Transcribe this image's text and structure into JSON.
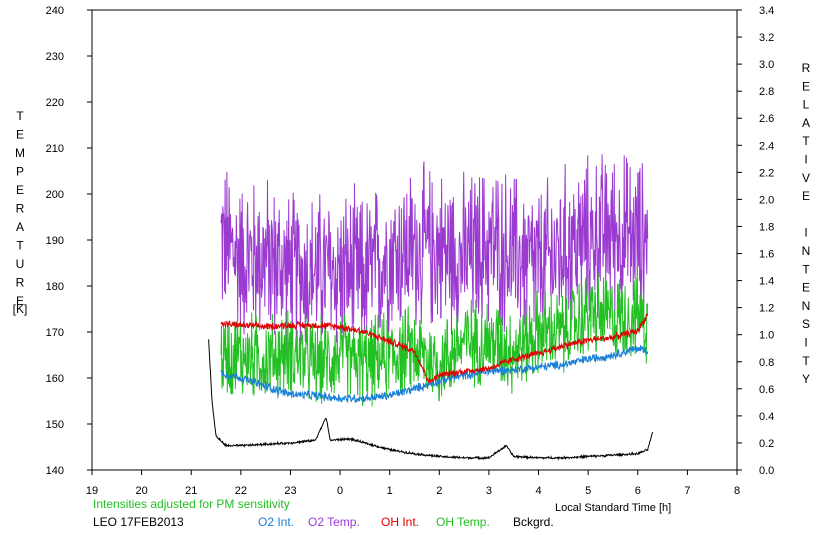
{
  "chart_data": {
    "type": "line",
    "left_axis_label": "TEMPERATURE",
    "left_axis_unit": "[K]",
    "right_axis_label": "RELATIVE INTENSITY",
    "xlabel": "Local Standard Time [h]",
    "ylim_left": [
      140,
      240
    ],
    "ylim_right": [
      0,
      3.4
    ],
    "xlim": [
      19,
      32
    ],
    "x_tick_labels": [
      "19",
      "20",
      "21",
      "22",
      "23",
      "0",
      "1",
      "2",
      "3",
      "4",
      "5",
      "6",
      "7",
      "8"
    ],
    "y_left_ticks": [
      140,
      150,
      160,
      170,
      180,
      190,
      200,
      210,
      220,
      230,
      240
    ],
    "y_right_ticks": [
      "0.0",
      "0.2",
      "0.4",
      "0.6",
      "0.8",
      "1.0",
      "1.2",
      "1.4",
      "1.6",
      "1.8",
      "2.0",
      "2.2",
      "2.4",
      "2.6",
      "2.8",
      "3.0",
      "3.2",
      "3.4"
    ],
    "note": "Intensities adjusted for PM sensitivity",
    "site_date": "LEO 17FEB2013",
    "grid": false,
    "series": [
      {
        "name": "O2 Int.",
        "color": "#1a7fd6",
        "axis": "right",
        "noise": 0.025,
        "points": [
          [
            21.6,
            0.72
          ],
          [
            22.0,
            0.68
          ],
          [
            22.5,
            0.62
          ],
          [
            23.0,
            0.56
          ],
          [
            23.5,
            0.55
          ],
          [
            24.0,
            0.53
          ],
          [
            24.5,
            0.53
          ],
          [
            25.0,
            0.55
          ],
          [
            25.5,
            0.6
          ],
          [
            26.0,
            0.66
          ],
          [
            26.5,
            0.7
          ],
          [
            27.0,
            0.73
          ],
          [
            27.5,
            0.74
          ],
          [
            28.0,
            0.76
          ],
          [
            28.5,
            0.78
          ],
          [
            29.0,
            0.82
          ],
          [
            29.5,
            0.85
          ],
          [
            30.0,
            0.9
          ],
          [
            30.2,
            0.88
          ]
        ]
      },
      {
        "name": "O2 Temp.",
        "color": "#9b3ad1",
        "axis": "left",
        "noise": 13,
        "points": [
          [
            21.6,
            190
          ],
          [
            22.0,
            186
          ],
          [
            22.5,
            186
          ],
          [
            23.0,
            183
          ],
          [
            23.5,
            183
          ],
          [
            24.0,
            183
          ],
          [
            24.5,
            182
          ],
          [
            25.0,
            187
          ],
          [
            25.5,
            188
          ],
          [
            26.0,
            188
          ],
          [
            26.5,
            186
          ],
          [
            27.0,
            189
          ],
          [
            27.5,
            187
          ],
          [
            28.0,
            184
          ],
          [
            28.5,
            188
          ],
          [
            29.0,
            190
          ],
          [
            29.5,
            192
          ],
          [
            30.0,
            190
          ],
          [
            30.2,
            190
          ]
        ]
      },
      {
        "name": "OH Int.",
        "color": "#e00000",
        "axis": "right",
        "noise": 0.02,
        "points": [
          [
            21.6,
            1.08
          ],
          [
            22.0,
            1.07
          ],
          [
            22.5,
            1.06
          ],
          [
            23.0,
            1.07
          ],
          [
            23.5,
            1.07
          ],
          [
            24.0,
            1.06
          ],
          [
            24.5,
            1.02
          ],
          [
            25.0,
            0.95
          ],
          [
            25.5,
            0.88
          ],
          [
            25.8,
            0.65
          ],
          [
            26.0,
            0.7
          ],
          [
            26.5,
            0.73
          ],
          [
            27.0,
            0.75
          ],
          [
            27.5,
            0.82
          ],
          [
            28.0,
            0.86
          ],
          [
            28.5,
            0.92
          ],
          [
            29.0,
            0.96
          ],
          [
            29.5,
            0.98
          ],
          [
            30.0,
            1.03
          ],
          [
            30.2,
            1.15
          ]
        ]
      },
      {
        "name": "OH Temp.",
        "color": "#22c022",
        "axis": "left",
        "noise": 7,
        "points": [
          [
            21.6,
            165
          ],
          [
            22.0,
            165
          ],
          [
            22.5,
            164
          ],
          [
            23.0,
            166
          ],
          [
            23.5,
            163
          ],
          [
            24.0,
            165
          ],
          [
            24.5,
            163
          ],
          [
            25.0,
            165
          ],
          [
            25.5,
            166
          ],
          [
            26.0,
            163
          ],
          [
            26.5,
            168
          ],
          [
            27.0,
            168
          ],
          [
            27.5,
            166
          ],
          [
            28.0,
            170
          ],
          [
            28.5,
            170
          ],
          [
            29.0,
            174
          ],
          [
            29.5,
            173
          ],
          [
            30.0,
            174
          ],
          [
            30.2,
            172
          ]
        ]
      },
      {
        "name": "Bckgrd.",
        "color": "#000000",
        "axis": "right",
        "noise": 0.006,
        "points": [
          [
            21.35,
            0.97
          ],
          [
            21.42,
            0.5
          ],
          [
            21.5,
            0.25
          ],
          [
            21.7,
            0.18
          ],
          [
            22.0,
            0.18
          ],
          [
            22.5,
            0.19
          ],
          [
            23.0,
            0.2
          ],
          [
            23.5,
            0.22
          ],
          [
            23.72,
            0.39
          ],
          [
            23.8,
            0.22
          ],
          [
            24.2,
            0.23
          ],
          [
            24.5,
            0.2
          ],
          [
            25.0,
            0.15
          ],
          [
            25.5,
            0.12
          ],
          [
            26.0,
            0.1
          ],
          [
            26.5,
            0.09
          ],
          [
            27.0,
            0.09
          ],
          [
            27.35,
            0.18
          ],
          [
            27.5,
            0.1
          ],
          [
            28.0,
            0.09
          ],
          [
            28.5,
            0.09
          ],
          [
            29.0,
            0.1
          ],
          [
            29.5,
            0.11
          ],
          [
            30.0,
            0.12
          ],
          [
            30.2,
            0.15
          ],
          [
            30.3,
            0.28
          ]
        ]
      }
    ]
  }
}
